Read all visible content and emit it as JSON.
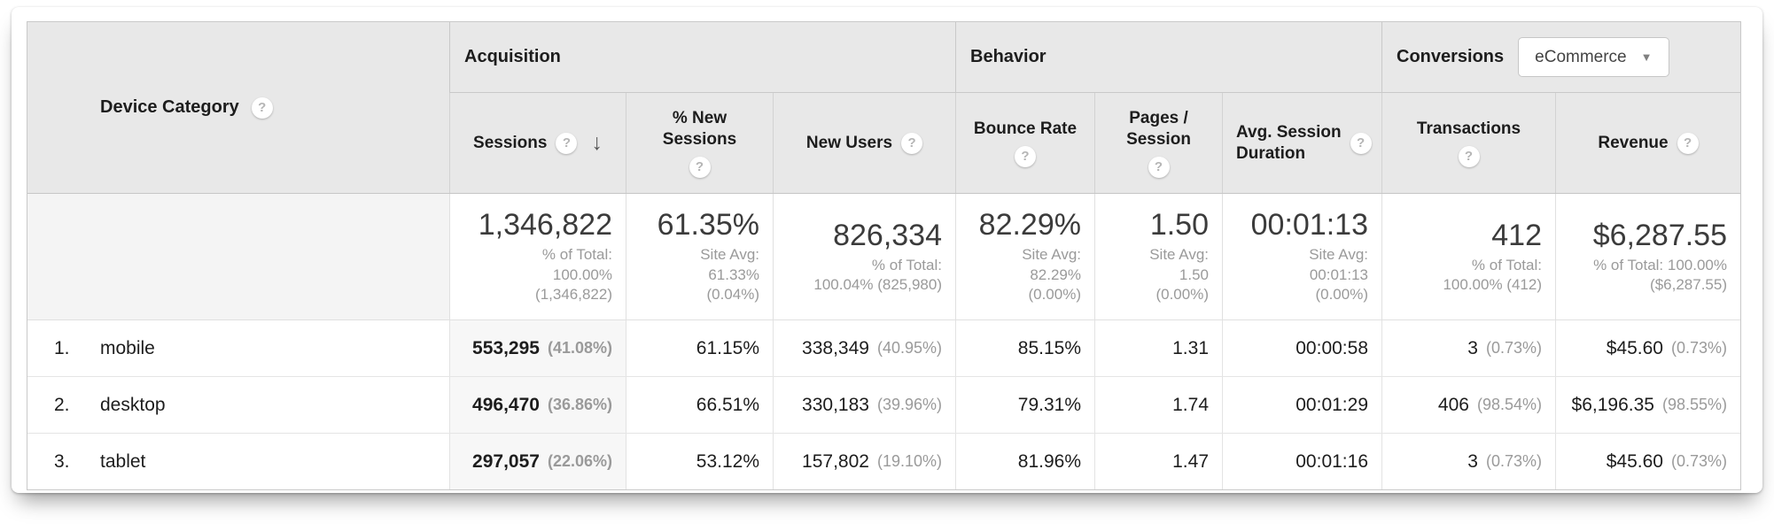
{
  "icons": {
    "help": "?",
    "sort_desc": "↓",
    "caret": "▼"
  },
  "table": {
    "row_header": {
      "label": "Device Category"
    },
    "groups": [
      {
        "label": "Acquisition"
      },
      {
        "label": "Behavior"
      },
      {
        "label": "Conversions"
      }
    ],
    "conversions_dropdown": {
      "value": "eCommerce"
    },
    "columns": [
      {
        "label": "Sessions",
        "sorted": "desc"
      },
      {
        "label": "% New\nSessions"
      },
      {
        "label": "New Users"
      },
      {
        "label": "Bounce Rate"
      },
      {
        "label": "Pages /\nSession"
      },
      {
        "label": "Avg. Session\nDuration"
      },
      {
        "label": "Transactions"
      },
      {
        "label": "Revenue"
      }
    ],
    "summary_cells": [
      {
        "value": "1,346,822",
        "sub": "% of Total:\n100.00%\n(1,346,822)"
      },
      {
        "value": "61.35%",
        "sub": "Site Avg:\n61.33%\n(0.04%)"
      },
      {
        "value": "826,334",
        "sub": "% of Total:\n100.04% (825,980)"
      },
      {
        "value": "82.29%",
        "sub": "Site Avg:\n82.29%\n(0.00%)"
      },
      {
        "value": "1.50",
        "sub": "Site Avg:\n1.50\n(0.00%)"
      },
      {
        "value": "00:01:13",
        "sub": "Site Avg:\n00:01:13\n(0.00%)"
      },
      {
        "value": "412",
        "sub": "% of Total:\n100.00% (412)"
      },
      {
        "value": "$6,287.55",
        "sub": "% of Total: 100.00%\n($6,287.55)"
      }
    ],
    "rows": [
      {
        "index": "1.",
        "name": "mobile",
        "cells": [
          {
            "value": "553,295",
            "pct": "(41.08%)"
          },
          {
            "value": "61.15%"
          },
          {
            "value": "338,349",
            "pct": "(40.95%)"
          },
          {
            "value": "85.15%"
          },
          {
            "value": "1.31"
          },
          {
            "value": "00:00:58"
          },
          {
            "value": "3",
            "pct": "(0.73%)"
          },
          {
            "value": "$45.60",
            "pct": "(0.73%)"
          }
        ]
      },
      {
        "index": "2.",
        "name": "desktop",
        "cells": [
          {
            "value": "496,470",
            "pct": "(36.86%)"
          },
          {
            "value": "66.51%"
          },
          {
            "value": "330,183",
            "pct": "(39.96%)"
          },
          {
            "value": "79.31%"
          },
          {
            "value": "1.74"
          },
          {
            "value": "00:01:29"
          },
          {
            "value": "406",
            "pct": "(98.54%)"
          },
          {
            "value": "$6,196.35",
            "pct": "(98.55%)"
          }
        ]
      },
      {
        "index": "3.",
        "name": "tablet",
        "cells": [
          {
            "value": "297,057",
            "pct": "(22.06%)"
          },
          {
            "value": "53.12%"
          },
          {
            "value": "157,802",
            "pct": "(19.10%)"
          },
          {
            "value": "81.96%"
          },
          {
            "value": "1.47"
          },
          {
            "value": "00:01:16"
          },
          {
            "value": "3",
            "pct": "(0.73%)"
          },
          {
            "value": "$45.60",
            "pct": "(0.73%)"
          }
        ]
      }
    ]
  }
}
